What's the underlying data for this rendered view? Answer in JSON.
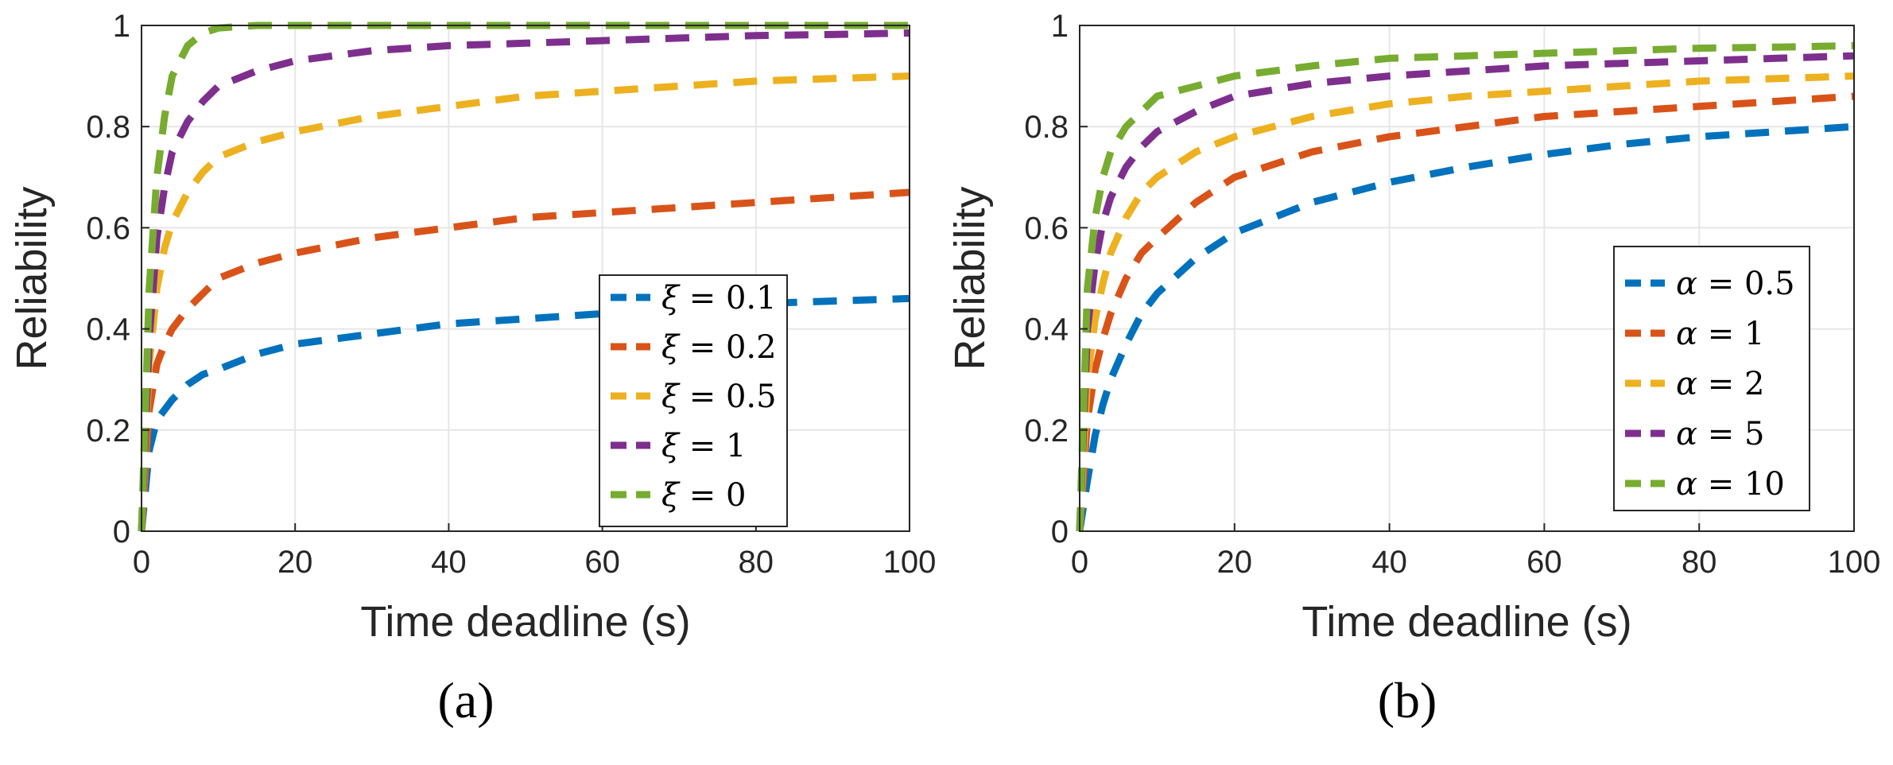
{
  "chart_data": [
    {
      "type": "line",
      "caption": "(a)",
      "xlabel": "Time deadline (s)",
      "ylabel": "Reliability",
      "xlim": [
        0,
        100
      ],
      "ylim": [
        0,
        1
      ],
      "xticks": [
        "0",
        "20",
        "40",
        "60",
        "80",
        "100"
      ],
      "yticks": [
        "0",
        "0.2",
        "0.4",
        "0.6",
        "0.8",
        "1"
      ],
      "grid": true,
      "legend_position": "bottom-right",
      "x": [
        0,
        1,
        2,
        3,
        4,
        6,
        8,
        10,
        15,
        20,
        30,
        40,
        50,
        60,
        70,
        80,
        90,
        100
      ],
      "series": [
        {
          "name": "ξ = 0.1",
          "symbol": "ξ",
          "value_label": " = 0.1",
          "color": "#0072BD",
          "values": [
            0.0,
            0.16,
            0.22,
            0.24,
            0.26,
            0.29,
            0.31,
            0.32,
            0.35,
            0.37,
            0.39,
            0.41,
            0.42,
            0.43,
            0.44,
            0.45,
            0.455,
            0.46
          ]
        },
        {
          "name": "ξ = 0.2",
          "symbol": "ξ",
          "value_label": " = 0.2",
          "color": "#D95319",
          "values": [
            0.0,
            0.24,
            0.33,
            0.37,
            0.4,
            0.44,
            0.47,
            0.5,
            0.53,
            0.55,
            0.58,
            0.6,
            0.62,
            0.63,
            0.64,
            0.65,
            0.66,
            0.67
          ]
        },
        {
          "name": "ξ = 0.5",
          "symbol": "ξ",
          "value_label": " = 0.5",
          "color": "#EDB120",
          "values": [
            0.0,
            0.33,
            0.48,
            0.56,
            0.61,
            0.67,
            0.71,
            0.74,
            0.77,
            0.79,
            0.82,
            0.84,
            0.86,
            0.87,
            0.88,
            0.89,
            0.895,
            0.9
          ]
        },
        {
          "name": "ξ = 1",
          "symbol": "ξ",
          "value_label": " = 1",
          "color": "#7E2F8E",
          "values": [
            0.0,
            0.38,
            0.58,
            0.68,
            0.75,
            0.81,
            0.85,
            0.88,
            0.91,
            0.93,
            0.95,
            0.96,
            0.965,
            0.97,
            0.975,
            0.98,
            0.982,
            0.985
          ]
        },
        {
          "name": "ξ = 0",
          "symbol": "ξ",
          "value_label": " = 0",
          "color": "#77AC30",
          "values": [
            0.0,
            0.48,
            0.7,
            0.82,
            0.9,
            0.96,
            0.985,
            0.995,
            1.0,
            1.0,
            1.0,
            1.0,
            1.0,
            1.0,
            1.0,
            1.0,
            1.0,
            1.0
          ]
        }
      ]
    },
    {
      "type": "line",
      "caption": "(b)",
      "xlabel": "Time deadline (s)",
      "ylabel": "Reliability",
      "xlim": [
        0,
        100
      ],
      "ylim": [
        0,
        1
      ],
      "xticks": [
        "0",
        "20",
        "40",
        "60",
        "80",
        "100"
      ],
      "yticks": [
        "0",
        "0.2",
        "0.4",
        "0.6",
        "0.8",
        "1"
      ],
      "grid": true,
      "legend_position": "bottom-right",
      "x": [
        0,
        1,
        2,
        3,
        4,
        6,
        8,
        10,
        15,
        20,
        30,
        40,
        50,
        60,
        70,
        80,
        90,
        100
      ],
      "series": [
        {
          "name": "α = 0.5",
          "symbol": "α",
          "value_label": " = 0.5",
          "color": "#0072BD",
          "values": [
            0.0,
            0.1,
            0.19,
            0.25,
            0.3,
            0.37,
            0.43,
            0.47,
            0.54,
            0.59,
            0.65,
            0.69,
            0.72,
            0.745,
            0.765,
            0.78,
            0.79,
            0.8
          ]
        },
        {
          "name": "α = 1",
          "symbol": "α",
          "value_label": " = 1",
          "color": "#D95319",
          "values": [
            0.0,
            0.22,
            0.32,
            0.38,
            0.43,
            0.5,
            0.55,
            0.58,
            0.65,
            0.7,
            0.75,
            0.78,
            0.8,
            0.82,
            0.83,
            0.84,
            0.85,
            0.86
          ]
        },
        {
          "name": "α = 2",
          "symbol": "α",
          "value_label": " = 2",
          "color": "#EDB120",
          "values": [
            0.0,
            0.3,
            0.42,
            0.49,
            0.55,
            0.62,
            0.67,
            0.7,
            0.75,
            0.78,
            0.82,
            0.845,
            0.86,
            0.87,
            0.88,
            0.89,
            0.895,
            0.9
          ]
        },
        {
          "name": "α = 5",
          "symbol": "α",
          "value_label": " = 5",
          "color": "#7E2F8E",
          "values": [
            0.0,
            0.4,
            0.53,
            0.61,
            0.66,
            0.72,
            0.76,
            0.79,
            0.83,
            0.86,
            0.885,
            0.9,
            0.91,
            0.92,
            0.925,
            0.93,
            0.935,
            0.94
          ]
        },
        {
          "name": "α = 10",
          "symbol": "α",
          "value_label": " = 10",
          "color": "#77AC30",
          "values": [
            0.0,
            0.48,
            0.62,
            0.7,
            0.75,
            0.8,
            0.83,
            0.86,
            0.88,
            0.9,
            0.92,
            0.935,
            0.94,
            0.945,
            0.95,
            0.955,
            0.957,
            0.96
          ]
        }
      ]
    }
  ]
}
